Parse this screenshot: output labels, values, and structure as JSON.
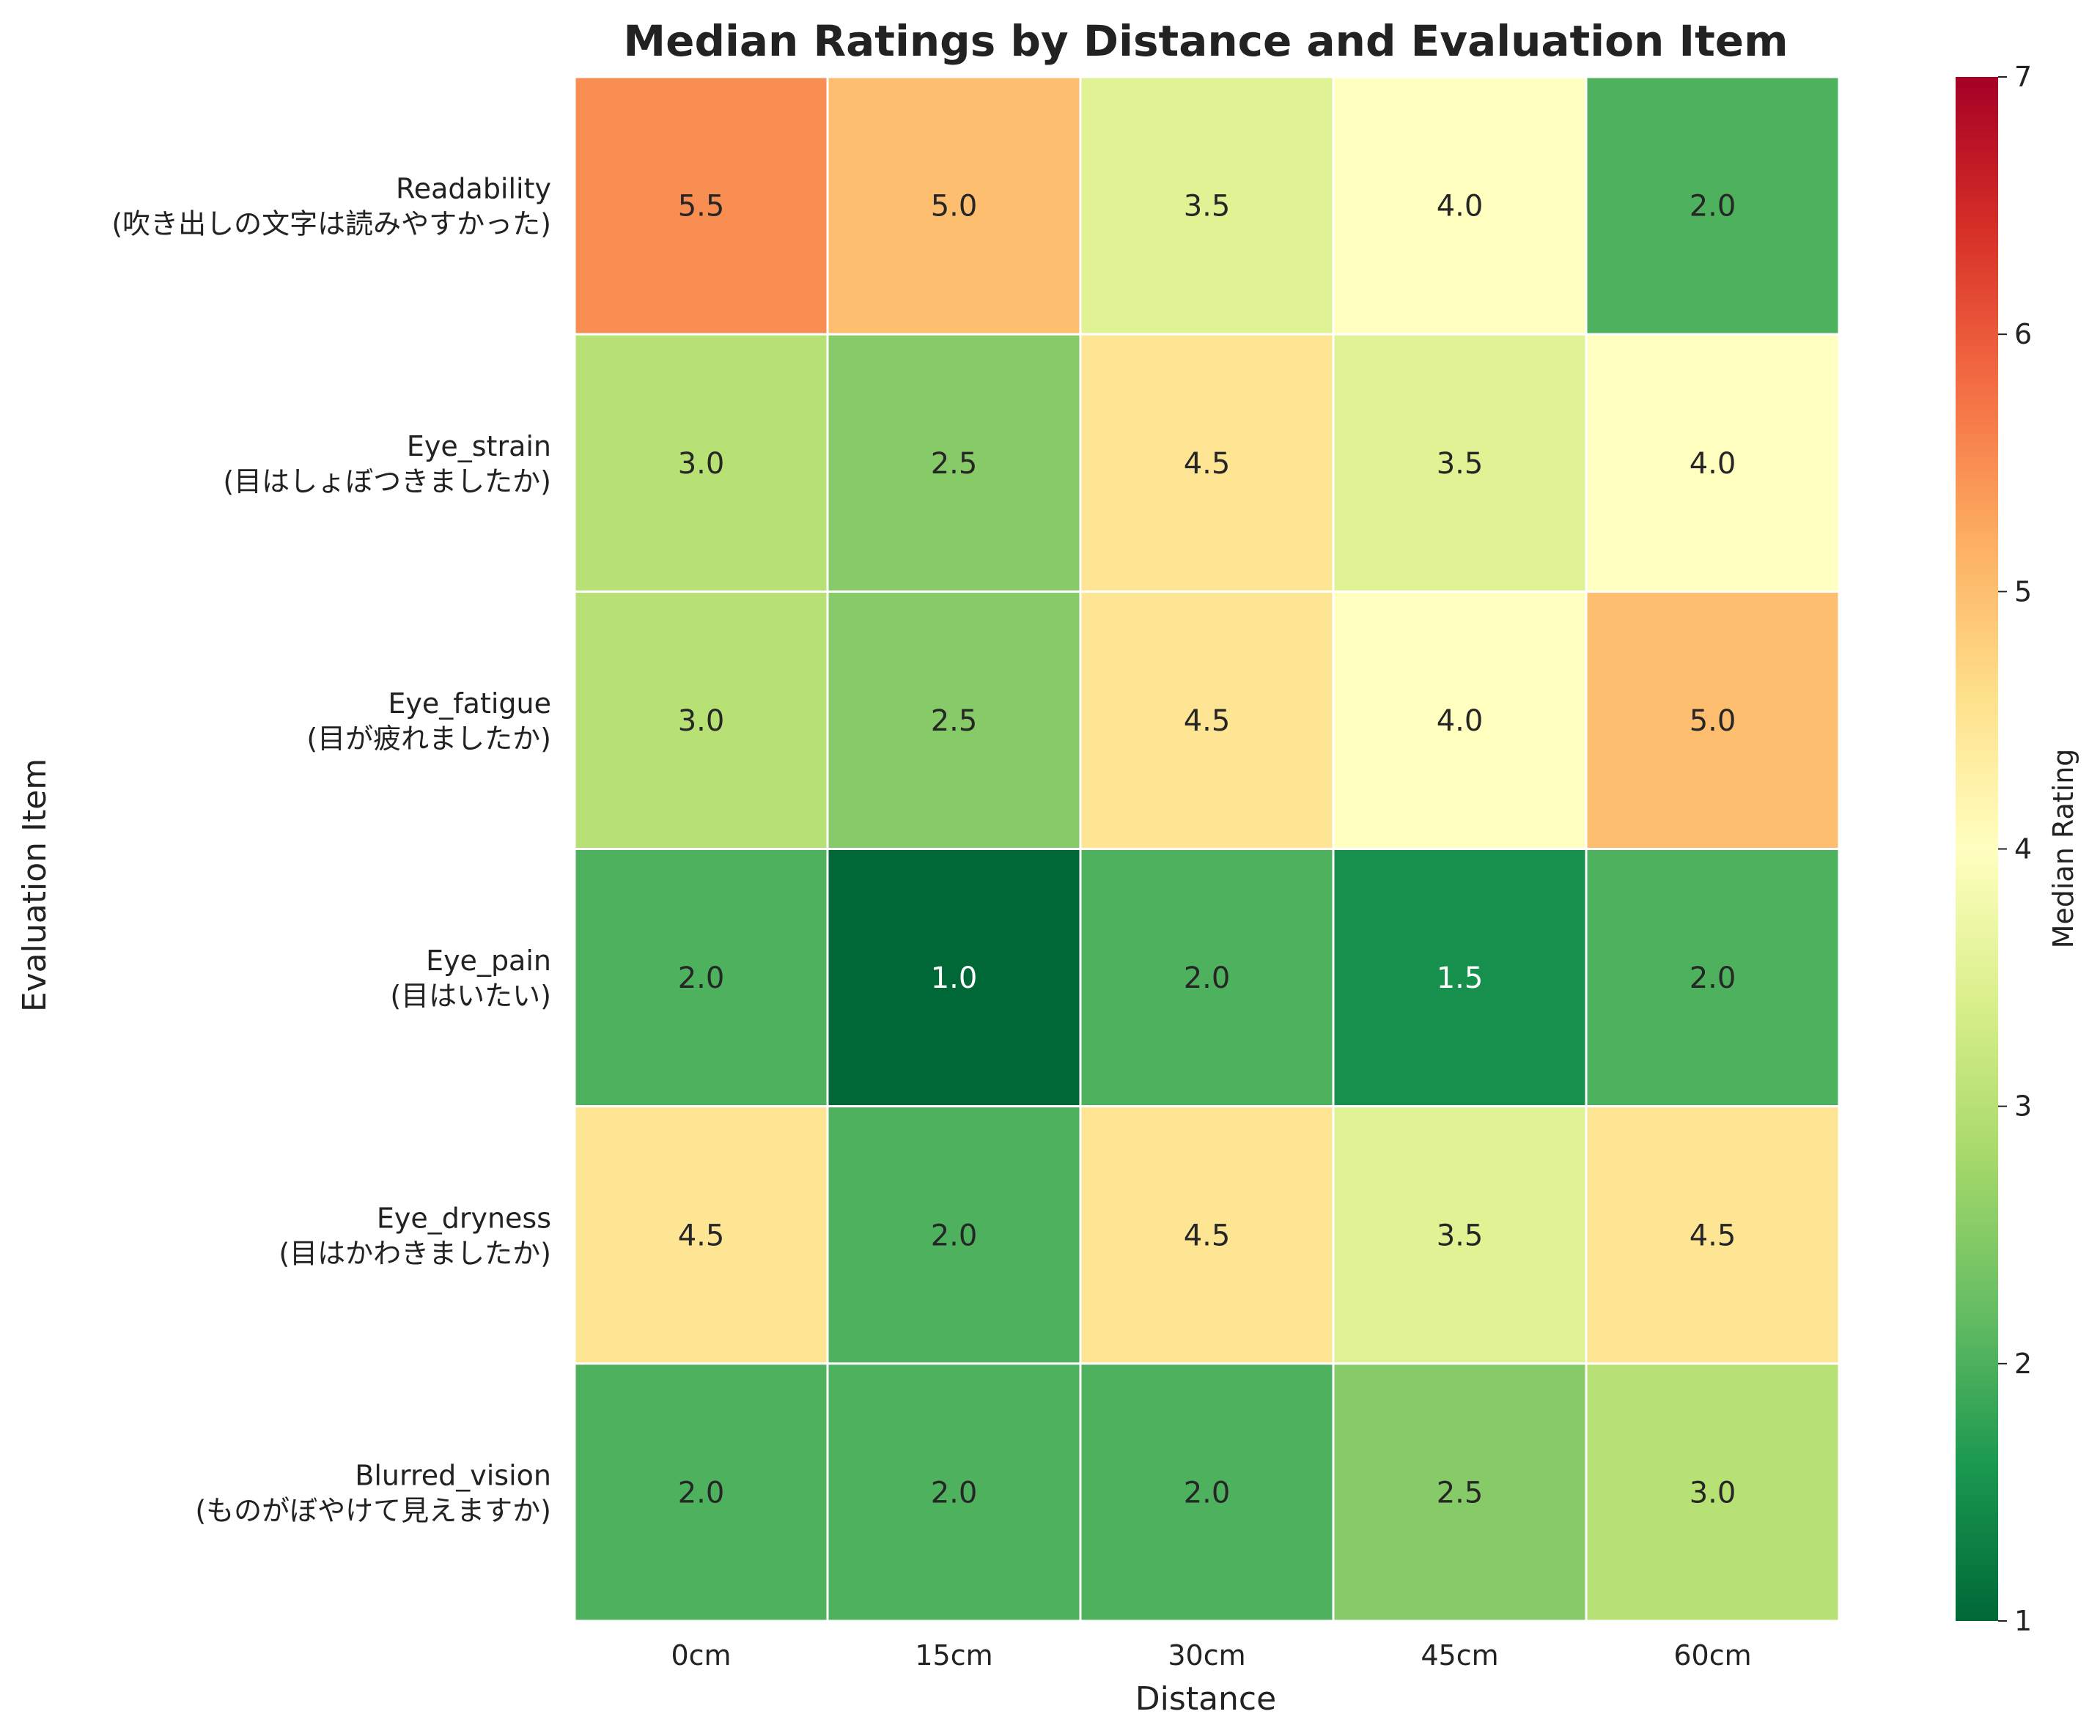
{
  "chart_data": {
    "type": "heatmap",
    "title": "Median Ratings by Distance and Evaluation Item",
    "xlabel": "Distance",
    "ylabel": "Evaluation Item",
    "x_categories": [
      "0cm",
      "15cm",
      "30cm",
      "45cm",
      "60cm"
    ],
    "y_categories": [
      {
        "name": "Readability",
        "subtitle": "(吹き出しの文字は読みやすかった)"
      },
      {
        "name": "Eye_strain",
        "subtitle": "(目はしょぼつきましたか)"
      },
      {
        "name": "Eye_fatigue",
        "subtitle": "(目が疲れましたか)"
      },
      {
        "name": "Eye_pain",
        "subtitle": "(目はいたい)"
      },
      {
        "name": "Eye_dryness",
        "subtitle": "(目はかわきましたか)"
      },
      {
        "name": "Blurred_vision",
        "subtitle": "(ものがぼやけて見えますか)"
      }
    ],
    "values": [
      [
        5.5,
        5.0,
        3.5,
        4.0,
        2.0
      ],
      [
        3.0,
        2.5,
        4.5,
        3.5,
        4.0
      ],
      [
        3.0,
        2.5,
        4.5,
        4.0,
        5.0
      ],
      [
        2.0,
        1.0,
        2.0,
        1.5,
        2.0
      ],
      [
        4.5,
        2.0,
        4.5,
        3.5,
        4.5
      ],
      [
        2.0,
        2.0,
        2.0,
        2.5,
        3.0
      ]
    ],
    "colorbar": {
      "label": "Median Rating",
      "range": [
        1,
        7
      ],
      "ticks": [
        "1",
        "2",
        "3",
        "4",
        "5",
        "6",
        "7"
      ],
      "colormap": "RdYlGn_r"
    },
    "grid": false,
    "legend": "colorbar-right"
  }
}
